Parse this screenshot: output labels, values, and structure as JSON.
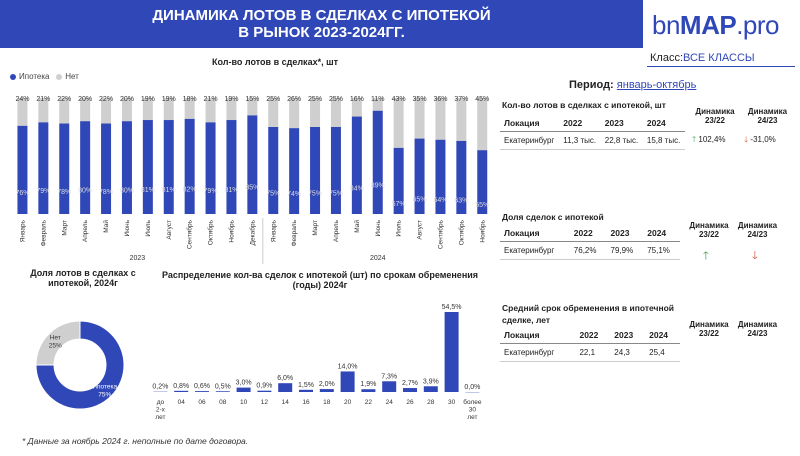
{
  "header": {
    "title_line1": "ДИНАМИКА  ЛОТОВ В СДЕЛКАХ С ИПОТЕКОЙ",
    "title_line2": "В РЫНОК 2023-2024ГГ.",
    "logo_part1": "bn",
    "logo_part2": "MAP",
    "logo_part3": ".pro"
  },
  "klass": {
    "label": "Класс:",
    "value": "ВСЕ КЛАССЫ"
  },
  "period": {
    "label": "Период:",
    "value": "январь-октябрь"
  },
  "colors": {
    "accent": "#3047b8",
    "other": "#cfcfcf",
    "up": "#3a9a4a",
    "down": "#d24a32"
  },
  "legend": {
    "a": "Ипотека",
    "b": "Нет"
  },
  "texts": {
    "main_title": "Кол-во лотов в сделках*, шт",
    "share_title": "Доля лотов в сделках с ипотекой, 2024г",
    "dist_title": "Распределение кол-ва сделок с ипотекой (шт) по срокам обременения (годы) 2024г",
    "footnote": "* Данные за ноябрь 2024 г. неполные по дате договора."
  },
  "chart_data": [
    {
      "type": "bar",
      "stacked": true,
      "percent": true,
      "title": "Кол-во лотов в сделках*, шт",
      "categories": [
        "Январь",
        "Февраль",
        "Март",
        "Апрель",
        "Май",
        "Июнь",
        "Июль",
        "Август",
        "Сентябрь",
        "Октябрь",
        "Ноябрь",
        "Декабрь",
        "Январь",
        "Февраль",
        "Март",
        "Апрель",
        "Май",
        "Июнь",
        "Июль",
        "Август",
        "Сентябрь",
        "Октябрь",
        "Ноябрь"
      ],
      "groups": [
        {
          "name": "2023",
          "count": 12
        },
        {
          "name": "2024",
          "count": 11
        }
      ],
      "series": [
        {
          "name": "Ипотека",
          "values": [
            76,
            79,
            78,
            80,
            78,
            80,
            81,
            81,
            82,
            79,
            81,
            85,
            75,
            74,
            75,
            75,
            84,
            89,
            57,
            65,
            64,
            63,
            55
          ]
        },
        {
          "name": "Нет",
          "values": [
            24,
            21,
            22,
            20,
            22,
            20,
            19,
            19,
            18,
            21,
            19,
            15,
            25,
            26,
            25,
            25,
            16,
            11,
            43,
            35,
            36,
            37,
            45
          ]
        }
      ],
      "legend_position": "top-left"
    },
    {
      "type": "pie",
      "donut": true,
      "title": "Доля лотов в сделках с ипотекой, 2024г",
      "slices": [
        {
          "name": "Ипотека",
          "value": 75
        },
        {
          "name": "Нет",
          "value": 25
        }
      ]
    },
    {
      "type": "bar",
      "title": "Распределение кол-ва сделок с ипотекой (шт) по срокам обременения (годы) 2024г",
      "categories": [
        [
          "до",
          "2-х",
          "лет"
        ],
        [
          "04"
        ],
        [
          "06"
        ],
        [
          "08"
        ],
        [
          "10"
        ],
        [
          "12"
        ],
        [
          "14"
        ],
        [
          "16"
        ],
        [
          "18"
        ],
        [
          "20"
        ],
        [
          "22"
        ],
        [
          "24"
        ],
        [
          "26"
        ],
        [
          "28"
        ],
        [
          "30"
        ],
        [
          "более",
          "30",
          "лет"
        ]
      ],
      "values": [
        0.2,
        0.8,
        0.6,
        0.5,
        3.0,
        0.9,
        6.0,
        1.5,
        2.0,
        14.0,
        1.9,
        7.3,
        2.7,
        3.9,
        54.5,
        0.0
      ],
      "labels": [
        "0,2%",
        "0,8%",
        "0,6%",
        "0,5%",
        "3,0%",
        "0,9%",
        "6,0%",
        "1,5%",
        "2,0%",
        "14,0%",
        "1,9%",
        "7,3%",
        "2,7%",
        "3,9%",
        "54,5%",
        "0,0%"
      ]
    }
  ],
  "table1": {
    "title": "Кол-во лотов в сделках с ипотекой, шт",
    "headers": [
      "Локация",
      "2022",
      "2023",
      "2024"
    ],
    "row": [
      "Екатеринбург",
      "11,3 тыс.",
      "22,8 тыс.",
      "15,8 тыс."
    ],
    "dyn1_label": "Динамика 23/22",
    "dyn2_label": "Динамика 24/23",
    "dyn1_value": "102,4%",
    "dyn2_value": "-31,0%",
    "dyn1_icon": "arrow-up-icon",
    "dyn2_icon": "arrow-down-icon"
  },
  "table2": {
    "title": "Доля сделок с ипотекой",
    "headers": [
      "Локация",
      "2022",
      "2023",
      "2024"
    ],
    "row": [
      "Екатеринбург",
      "76,2%",
      "79,9%",
      "75,1%"
    ],
    "dyn1_label": "Динамика 23/22",
    "dyn2_label": "Динамика 24/23"
  },
  "table3": {
    "title": "Средний срок обременения в ипотечной сделке, лет",
    "headers": [
      "Локация",
      "2022",
      "2023",
      "2024"
    ],
    "row": [
      "Екатеринбург",
      "22,1",
      "24,3",
      "25,4"
    ],
    "dyn1_label": "Динамика 23/22",
    "dyn2_label": "Динамика 24/23"
  }
}
